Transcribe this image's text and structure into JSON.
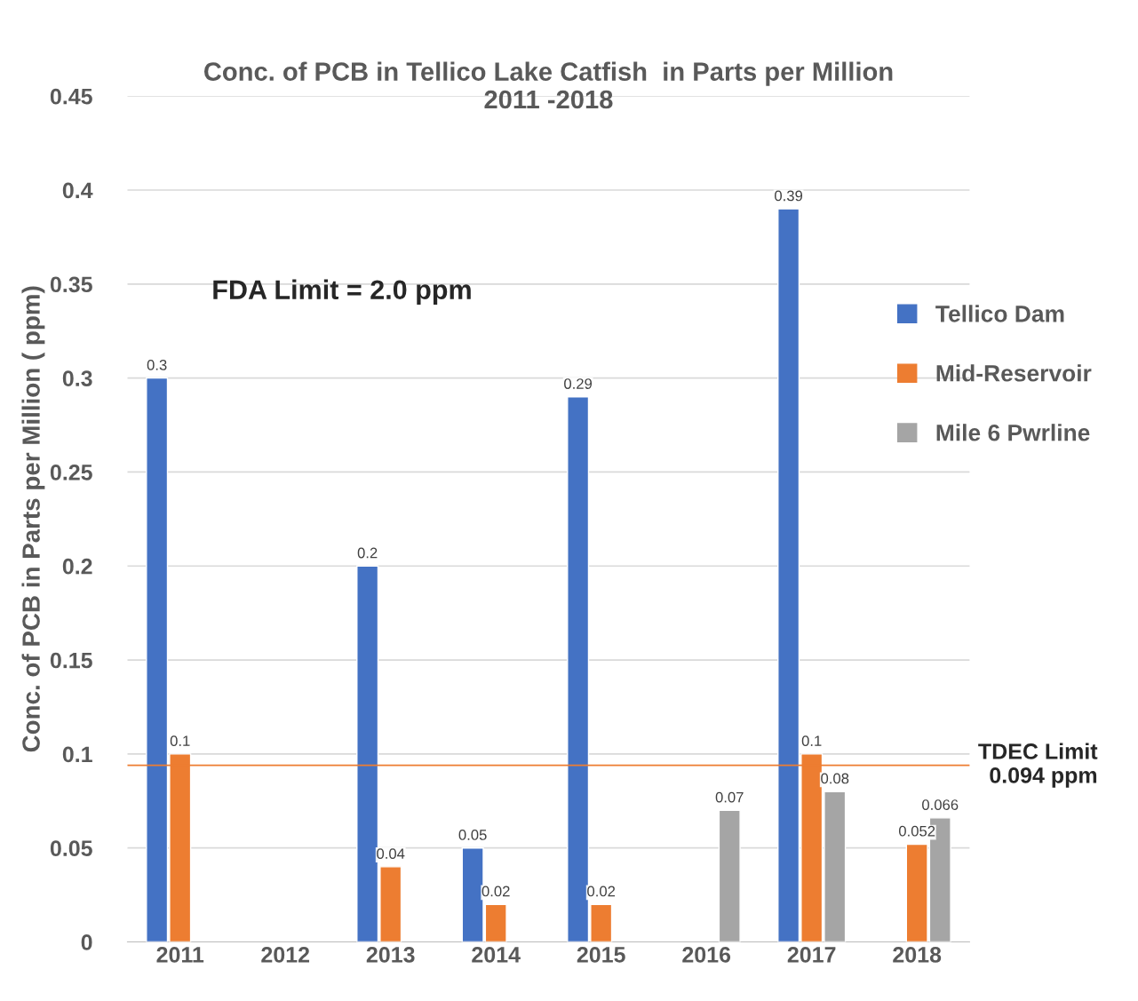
{
  "chart_data": {
    "type": "bar",
    "title": "Conc. of PCB in Tellico Lake Catfish  in Parts per Million\n2011 -2018",
    "ylabel": "Conc. of PCB in Parts per Million ( ppm)",
    "categories": [
      "2011",
      "2012",
      "2013",
      "2014",
      "2015",
      "2016",
      "2017",
      "2018"
    ],
    "series": [
      {
        "name": "Tellico Dam",
        "color": "#4472c4",
        "values": [
          0.3,
          null,
          0.2,
          0.05,
          0.29,
          null,
          0.39,
          null
        ]
      },
      {
        "name": "Mid-Reservoir",
        "color": "#ed7d31",
        "values": [
          0.1,
          null,
          0.04,
          0.02,
          0.02,
          null,
          0.1,
          0.052
        ]
      },
      {
        "name": "Mile 6 Pwrline",
        "color": "#a5a5a5",
        "values": [
          null,
          null,
          null,
          null,
          null,
          0.07,
          0.08,
          0.066
        ]
      }
    ],
    "ylim": [
      0,
      0.45
    ],
    "yticks": [
      0,
      0.05,
      0.1,
      0.15,
      0.2,
      0.25,
      0.3,
      0.35,
      0.4,
      0.45
    ],
    "grid": "y",
    "legend": "right",
    "data_labels": true,
    "ref_lines": [
      {
        "axis": "y",
        "value": 0.094,
        "label": "TDEC Limit\n0.094 ppm",
        "color": "#ed7d31"
      }
    ],
    "annotations": [
      "FDA Limit = 2.0 ppm"
    ]
  }
}
